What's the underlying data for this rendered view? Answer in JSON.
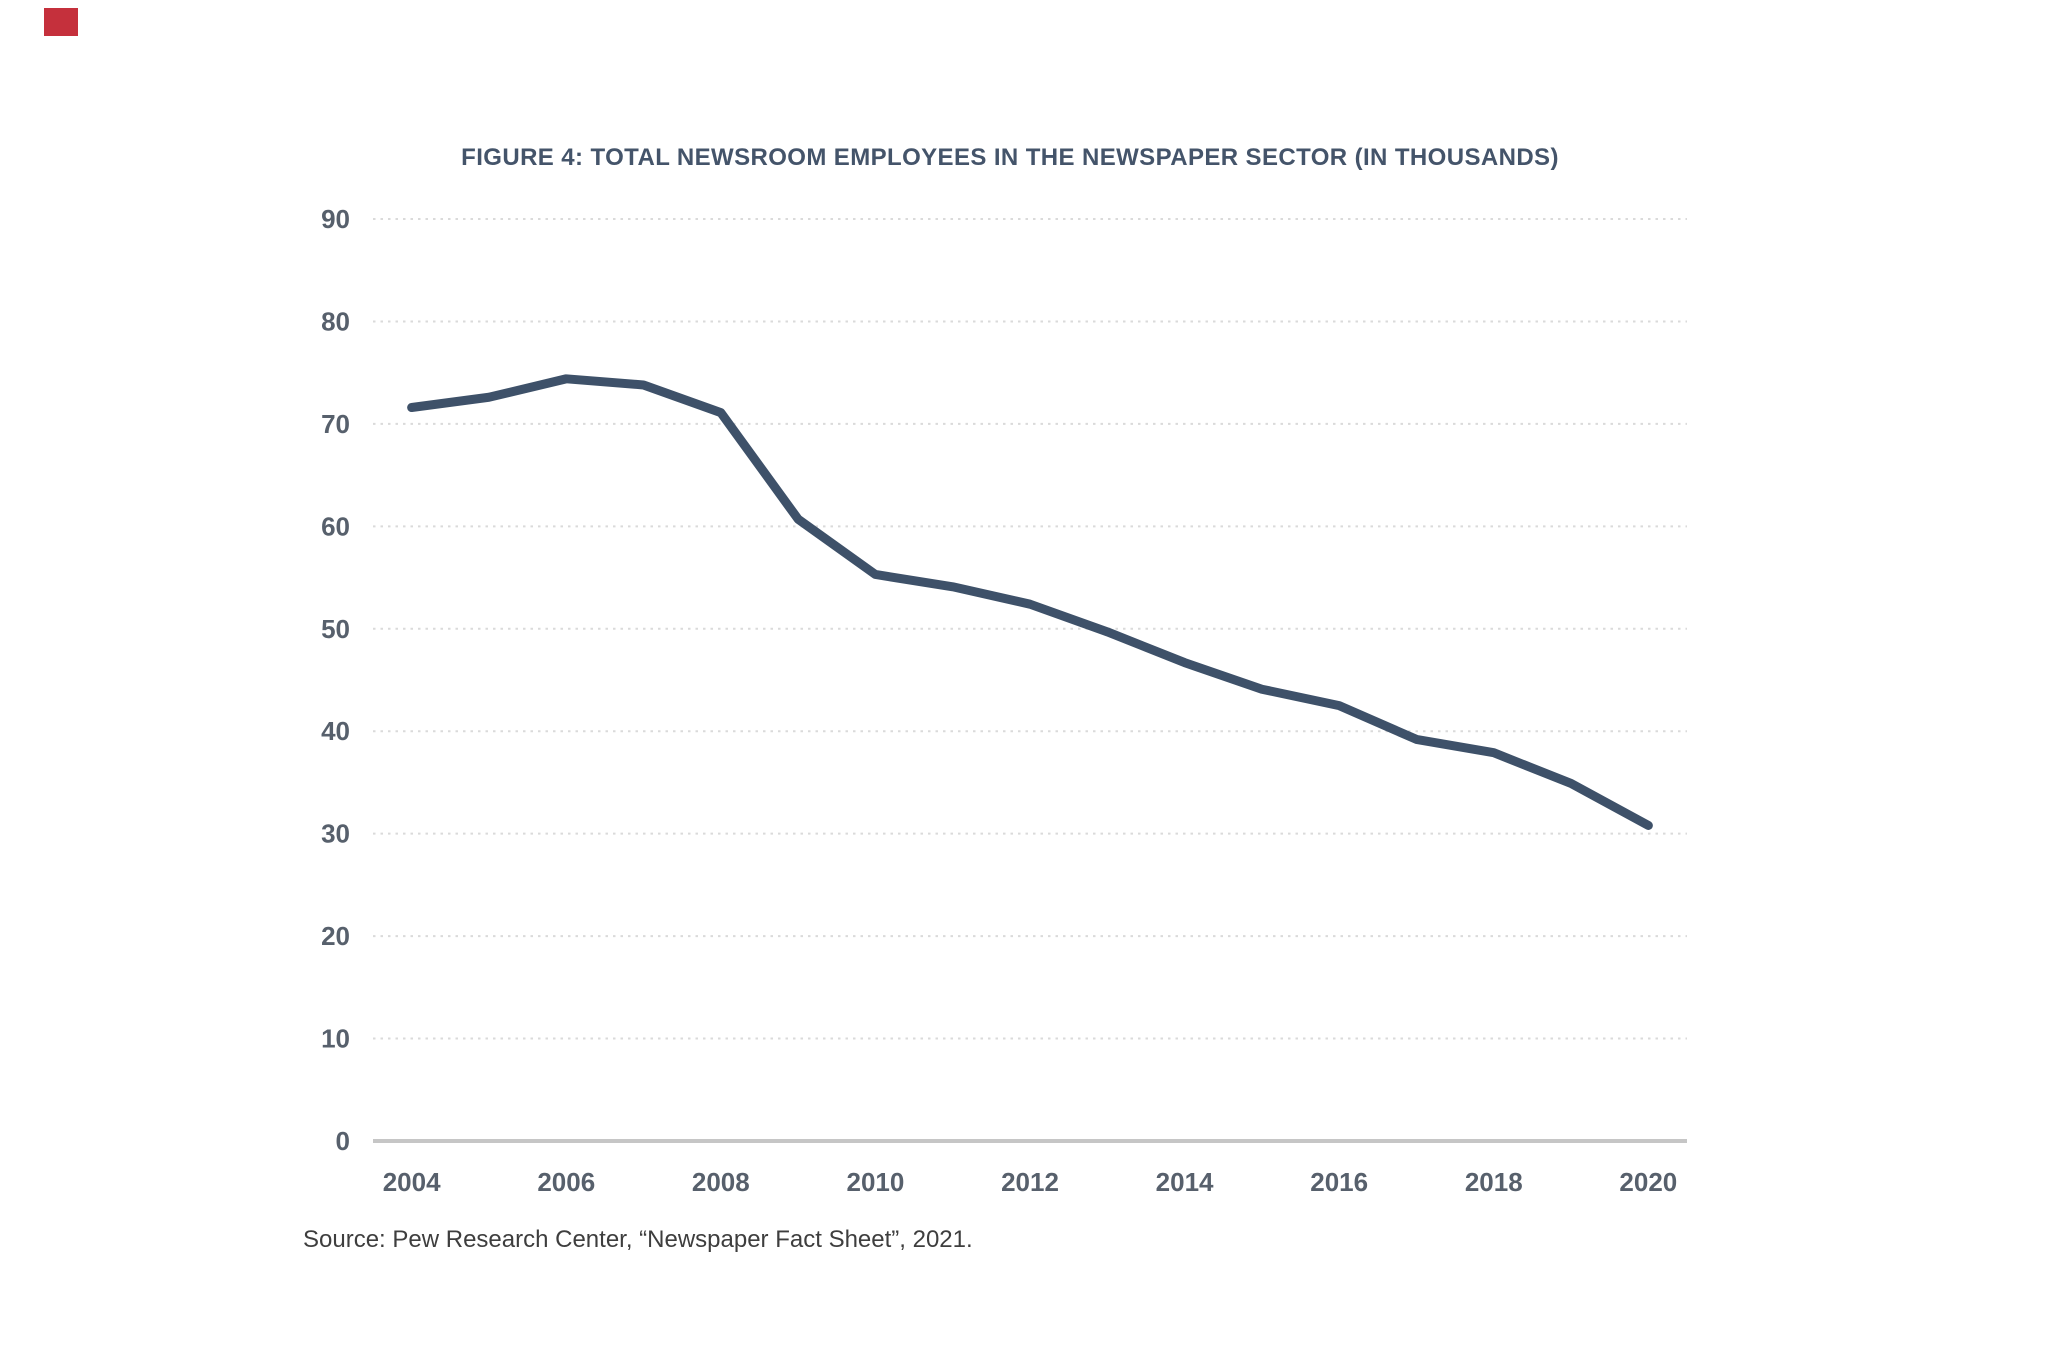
{
  "page": {
    "corner_mark_color": "#C5303C"
  },
  "chart_data": {
    "type": "line",
    "title": "FIGURE 4: TOTAL NEWSROOM EMPLOYEES IN THE NEWSPAPER SECTOR (IN THOUSANDS)",
    "x": [
      2004,
      2005,
      2006,
      2007,
      2008,
      2009,
      2010,
      2011,
      2012,
      2013,
      2014,
      2015,
      2016,
      2017,
      2018,
      2019,
      2020
    ],
    "values": [
      71.6,
      72.6,
      74.4,
      73.8,
      71.1,
      60.7,
      55.3,
      54.1,
      52.4,
      49.7,
      46.7,
      44.1,
      42.5,
      39.2,
      37.9,
      34.9,
      30.8
    ],
    "series_name": "Total newsroom employees (thousands)",
    "xlabel": "",
    "ylabel": "",
    "ylim": [
      0,
      90
    ],
    "xlim_padding_years": 0.5,
    "y_ticks": [
      0,
      10,
      20,
      30,
      40,
      50,
      60,
      70,
      80,
      90
    ],
    "y_tick_labels": [
      "0",
      "10",
      "20",
      "30",
      "40",
      "50",
      "60",
      "70",
      "80",
      "90"
    ],
    "x_ticks": [
      2004,
      2006,
      2008,
      2010,
      2012,
      2014,
      2016,
      2018,
      2020
    ],
    "x_tick_labels": [
      "2004",
      "2006",
      "2008",
      "2010",
      "2012",
      "2014",
      "2016",
      "2018",
      "2020"
    ],
    "grid": "horizontal dotted gridlines at each y tick; solid baseline at 0",
    "legend": "none",
    "line_color": "#3E5169",
    "gridline_color": "#DADADA",
    "axis_line_color": "#C6C6C6",
    "tick_label_color": "#57606C",
    "title_color": "#44546A",
    "source": "Source: Pew Research Center, “Newspaper Fact Sheet”, 2021."
  }
}
